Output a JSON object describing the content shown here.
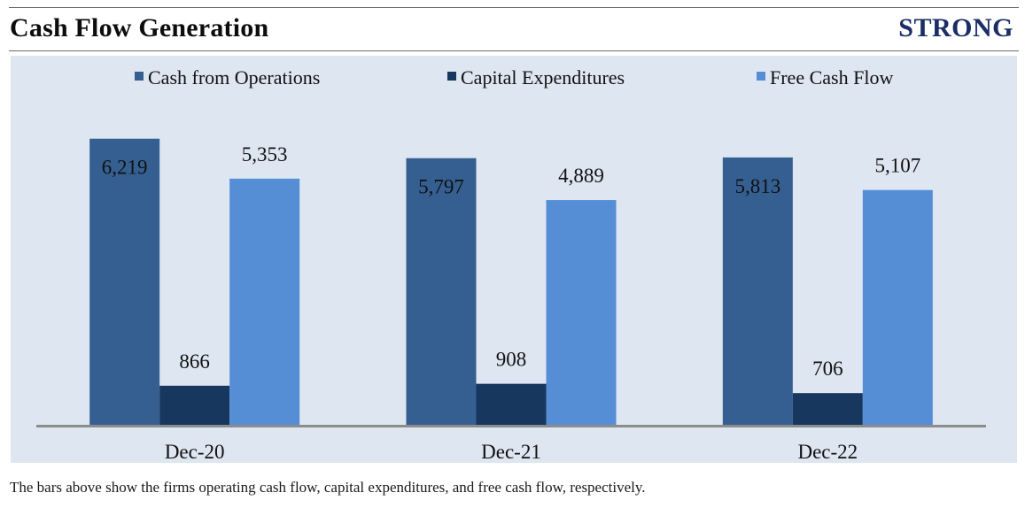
{
  "header": {
    "title": "Cash Flow Generation",
    "rating": "STRONG"
  },
  "chart_data": {
    "type": "bar",
    "title": "Cash Flow Generation",
    "categories": [
      "Dec-20",
      "Dec-21",
      "Dec-22"
    ],
    "series": [
      {
        "name": "Cash from Operations",
        "values": [
          6219,
          5797,
          5813
        ],
        "labels": [
          "6,219",
          "5,797",
          "5,813"
        ],
        "color": "#355f91",
        "label_position": "inside-top"
      },
      {
        "name": "Capital Expenditures",
        "values": [
          866,
          908,
          706
        ],
        "labels": [
          "866",
          "908",
          "706"
        ],
        "color": "#17375e",
        "label_position": "above"
      },
      {
        "name": "Free Cash Flow",
        "values": [
          5353,
          4889,
          5107
        ],
        "labels": [
          "5,353",
          "4,889",
          "5,107"
        ],
        "color": "#558ed5",
        "label_position": "above"
      }
    ],
    "xlabel": "",
    "ylabel": "",
    "ylim": [
      0,
      7000
    ],
    "grid": false,
    "legend": "top-center"
  },
  "caption": "The bars above show the firms operating cash flow, capital expenditures, and free cash flow, respectively."
}
